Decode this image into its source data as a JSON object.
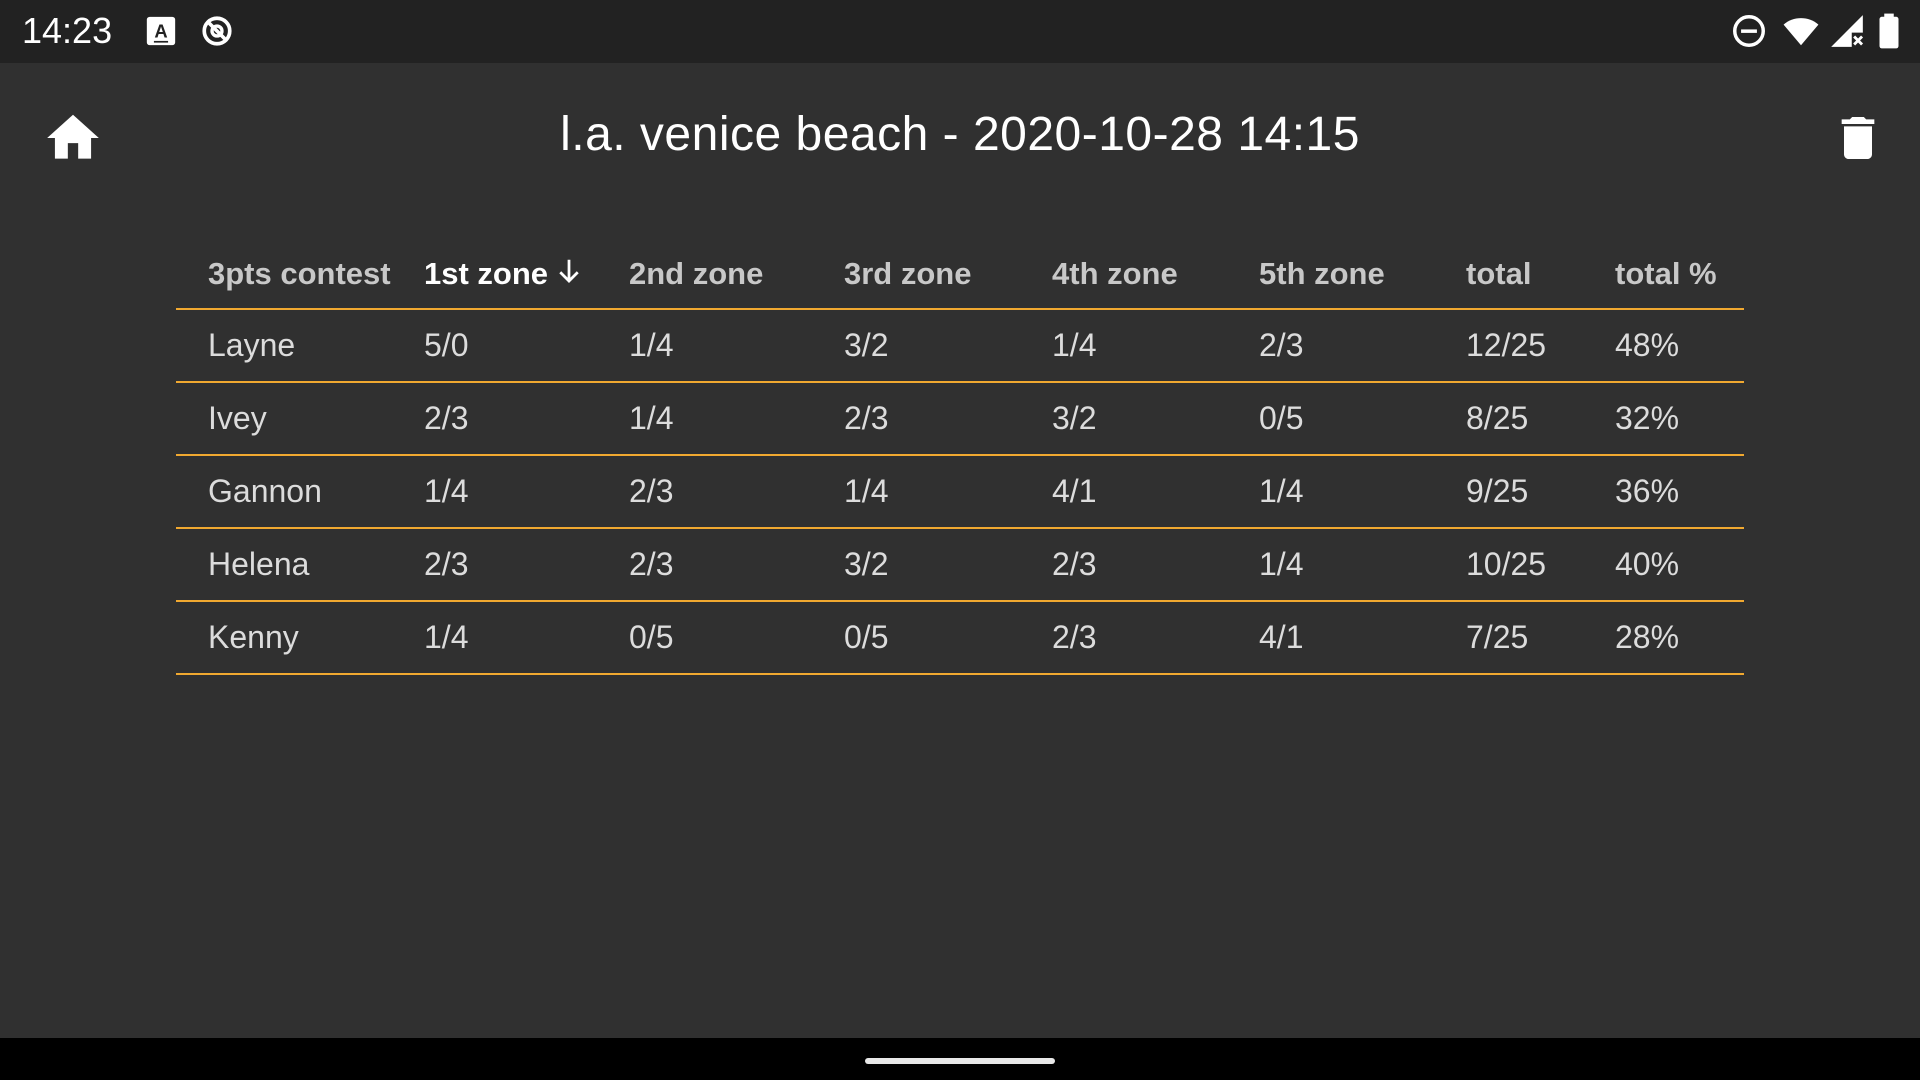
{
  "status_bar": {
    "time": "14:23",
    "left_icons": [
      "font-a-icon",
      "sync-icon"
    ],
    "right_icons": [
      "do-not-disturb-icon",
      "wifi-icon",
      "cell-signal-icon",
      "battery-icon"
    ]
  },
  "app_bar": {
    "title": "l.a. venice beach - 2020-10-28 14:15",
    "home_icon": "home-icon",
    "delete_icon": "trash-icon"
  },
  "table": {
    "headers": [
      "3pts contest",
      "1st zone",
      "2nd zone",
      "3rd zone",
      "4th zone",
      "5th zone",
      "total",
      "total %"
    ],
    "sorted_column": 1,
    "sort_direction": "down",
    "rows": [
      [
        "Layne",
        "5/0",
        "1/4",
        "3/2",
        "1/4",
        "2/3",
        "12/25",
        "48%"
      ],
      [
        "Ivey",
        "2/3",
        "1/4",
        "2/3",
        "3/2",
        "0/5",
        "8/25",
        "32%"
      ],
      [
        "Gannon",
        "1/4",
        "2/3",
        "1/4",
        "4/1",
        "1/4",
        "9/25",
        "36%"
      ],
      [
        "Helena",
        "2/3",
        "2/3",
        "3/2",
        "2/3",
        "1/4",
        "10/25",
        "40%"
      ],
      [
        "Kenny",
        "1/4",
        "0/5",
        "0/5",
        "2/3",
        "4/1",
        "7/25",
        "28%"
      ]
    ]
  },
  "colors": {
    "background": "#303030",
    "status_bar": "#222222",
    "divider": "#f0a830",
    "nav_bar": "#000000"
  }
}
